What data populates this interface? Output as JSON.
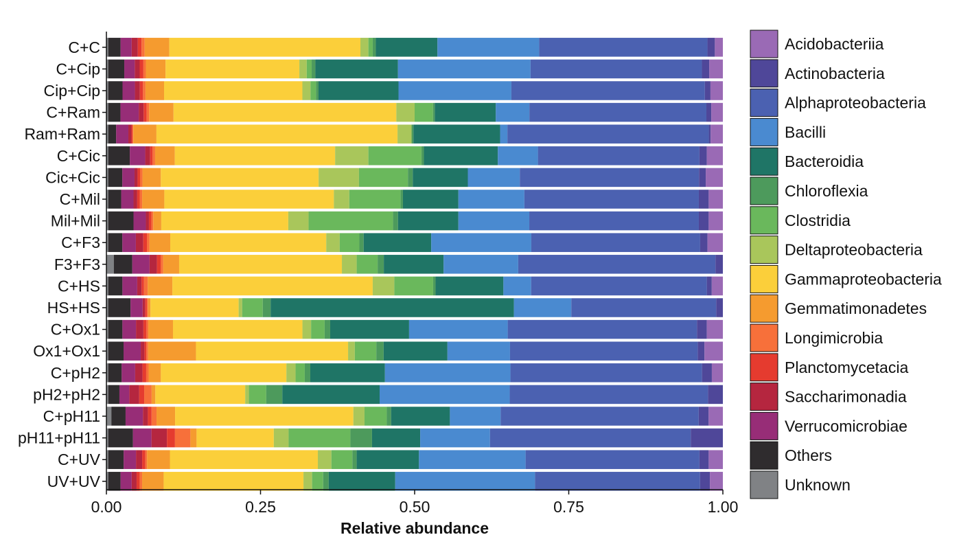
{
  "chart_data": {
    "type": "bar",
    "orientation": "horizontal",
    "stacked": true,
    "title": "",
    "xlabel": "Relative abundance",
    "ylabel": "",
    "xlim": [
      0,
      1
    ],
    "xticks": [
      "0.00",
      "0.25",
      "0.50",
      "0.75",
      "1.00"
    ],
    "legend_position": "right",
    "categories": [
      "C+C",
      "C+Cip",
      "Cip+Cip",
      "C+Ram",
      "Ram+Ram",
      "C+Cic",
      "Cic+Cic",
      "C+Mil",
      "Mil+Mil",
      "C+F3",
      "F3+F3",
      "C+HS",
      "HS+HS",
      "C+Ox1",
      "Ox1+Ox1",
      "C+pH2",
      "pH2+pH2",
      "C+pH11",
      "pH11+pH11",
      "C+UV",
      "UV+UV"
    ],
    "stack_order": [
      "Unknown",
      "Others",
      "Verrucomicrobiae",
      "Saccharimonadia",
      "Planctomycetacia",
      "Longimicrobia",
      "Gemmatimonadetes",
      "Gammaproteobacteria",
      "Deltaproteobacteria",
      "Clostridia",
      "Chloroflexia",
      "Bacteroidia",
      "Bacilli",
      "Alphaproteobacteria",
      "Actinobacteria",
      "Acidobacteriia"
    ],
    "series": [
      {
        "name": "Unknown",
        "color": "#808285",
        "values": [
          0.003,
          0.003,
          0.003,
          0.003,
          0.003,
          0.003,
          0.003,
          0.003,
          0.003,
          0.003,
          0.012,
          0.003,
          0.003,
          0.003,
          0.003,
          0.003,
          0.003,
          0.008,
          0.003,
          0.003,
          0.003
        ]
      },
      {
        "name": "Others",
        "color": "#2f2c2e",
        "values": [
          0.02,
          0.026,
          0.023,
          0.02,
          0.013,
          0.035,
          0.023,
          0.021,
          0.041,
          0.023,
          0.03,
          0.023,
          0.037,
          0.023,
          0.025,
          0.022,
          0.018,
          0.023,
          0.04,
          0.025,
          0.02
        ]
      },
      {
        "name": "Verrucomicrobiae",
        "color": "#972d77",
        "values": [
          0.018,
          0.017,
          0.02,
          0.03,
          0.02,
          0.025,
          0.02,
          0.02,
          0.02,
          0.022,
          0.028,
          0.024,
          0.02,
          0.022,
          0.028,
          0.022,
          0.016,
          0.028,
          0.03,
          0.02,
          0.018
        ]
      },
      {
        "name": "Saccharimonadia",
        "color": "#b5263f",
        "values": [
          0.01,
          0.008,
          0.008,
          0.008,
          0.005,
          0.008,
          0.005,
          0.006,
          0.005,
          0.012,
          0.012,
          0.007,
          0.004,
          0.012,
          0.006,
          0.012,
          0.016,
          0.008,
          0.025,
          0.01,
          0.008
        ]
      },
      {
        "name": "Planctomycetacia",
        "color": "#e53b2f",
        "values": [
          0.006,
          0.006,
          0.005,
          0.005,
          0.002,
          0.004,
          0.004,
          0.004,
          0.004,
          0.006,
          0.006,
          0.004,
          0.003,
          0.005,
          0.003,
          0.006,
          0.008,
          0.006,
          0.013,
          0.005,
          0.005
        ]
      },
      {
        "name": "Longimicrobia",
        "color": "#f7703a",
        "values": [
          0.005,
          0.004,
          0.004,
          0.004,
          0.001,
          0.004,
          0.004,
          0.004,
          0.003,
          0.004,
          0.004,
          0.006,
          0.002,
          0.003,
          0.003,
          0.004,
          0.012,
          0.008,
          0.025,
          0.003,
          0.004
        ]
      },
      {
        "name": "Gemmatimonadetes",
        "color": "#f59b2f",
        "values": [
          0.04,
          0.032,
          0.03,
          0.04,
          0.038,
          0.032,
          0.03,
          0.036,
          0.013,
          0.034,
          0.026,
          0.04,
          0.004,
          0.04,
          0.078,
          0.02,
          0.006,
          0.03,
          0.01,
          0.037,
          0.035
        ]
      },
      {
        "name": "Gammaproteobacteria",
        "color": "#fbcf3a",
        "values": [
          0.31,
          0.217,
          0.223,
          0.365,
          0.395,
          0.26,
          0.258,
          0.275,
          0.206,
          0.254,
          0.264,
          0.325,
          0.146,
          0.21,
          0.248,
          0.205,
          0.145,
          0.288,
          0.125,
          0.24,
          0.227
        ]
      },
      {
        "name": "Deltaproteobacteria",
        "color": "#a9c65b",
        "values": [
          0.013,
          0.012,
          0.013,
          0.03,
          0.023,
          0.054,
          0.066,
          0.025,
          0.033,
          0.022,
          0.024,
          0.035,
          0.006,
          0.014,
          0.011,
          0.015,
          0.006,
          0.018,
          0.024,
          0.022,
          0.014
        ]
      },
      {
        "name": "Clostridia",
        "color": "#6ab85c",
        "values": [
          0.007,
          0.008,
          0.009,
          0.03,
          0.0,
          0.086,
          0.08,
          0.083,
          0.137,
          0.032,
          0.034,
          0.063,
          0.034,
          0.022,
          0.035,
          0.015,
          0.028,
          0.036,
          0.1,
          0.034,
          0.018
        ]
      },
      {
        "name": "Chloroflexia",
        "color": "#4d9a5c",
        "values": [
          0.005,
          0.006,
          0.004,
          0.003,
          0.003,
          0.004,
          0.008,
          0.004,
          0.008,
          0.007,
          0.01,
          0.004,
          0.013,
          0.009,
          0.012,
          0.009,
          0.026,
          0.007,
          0.035,
          0.007,
          0.009
        ]
      },
      {
        "name": "Bacteroidia",
        "color": "#1f7566",
        "values": [
          0.1,
          0.134,
          0.129,
          0.1,
          0.142,
          0.12,
          0.09,
          0.09,
          0.098,
          0.11,
          0.097,
          0.11,
          0.403,
          0.128,
          0.104,
          0.122,
          0.157,
          0.095,
          0.078,
          0.101,
          0.108
        ]
      },
      {
        "name": "Bacilli",
        "color": "#4a8ad0",
        "values": [
          0.165,
          0.215,
          0.182,
          0.055,
          0.012,
          0.065,
          0.085,
          0.107,
          0.115,
          0.163,
          0.121,
          0.045,
          0.095,
          0.16,
          0.102,
          0.205,
          0.21,
          0.082,
          0.113,
          0.173,
          0.227
        ]
      },
      {
        "name": "Alphaproteobacteria",
        "color": "#4b61b1",
        "values": [
          0.273,
          0.278,
          0.312,
          0.29,
          0.33,
          0.262,
          0.293,
          0.283,
          0.275,
          0.275,
          0.32,
          0.285,
          0.24,
          0.307,
          0.306,
          0.313,
          0.32,
          0.32,
          0.325,
          0.282,
          0.268
        ]
      },
      {
        "name": "Actinobacteria",
        "color": "#4f4799",
        "values": [
          0.012,
          0.012,
          0.009,
          0.008,
          0.003,
          0.012,
          0.011,
          0.016,
          0.016,
          0.012,
          0.012,
          0.008,
          0.011,
          0.016,
          0.011,
          0.016,
          0.024,
          0.016,
          0.052,
          0.015,
          0.016
        ]
      },
      {
        "name": "Acidobacteriia",
        "color": "#9a6ab5",
        "values": [
          0.013,
          0.022,
          0.02,
          0.019,
          0.02,
          0.026,
          0.028,
          0.023,
          0.023,
          0.025,
          0.0,
          0.018,
          0.0,
          0.026,
          0.03,
          0.018,
          0.0,
          0.023,
          0.0,
          0.023,
          0.021
        ]
      }
    ]
  }
}
